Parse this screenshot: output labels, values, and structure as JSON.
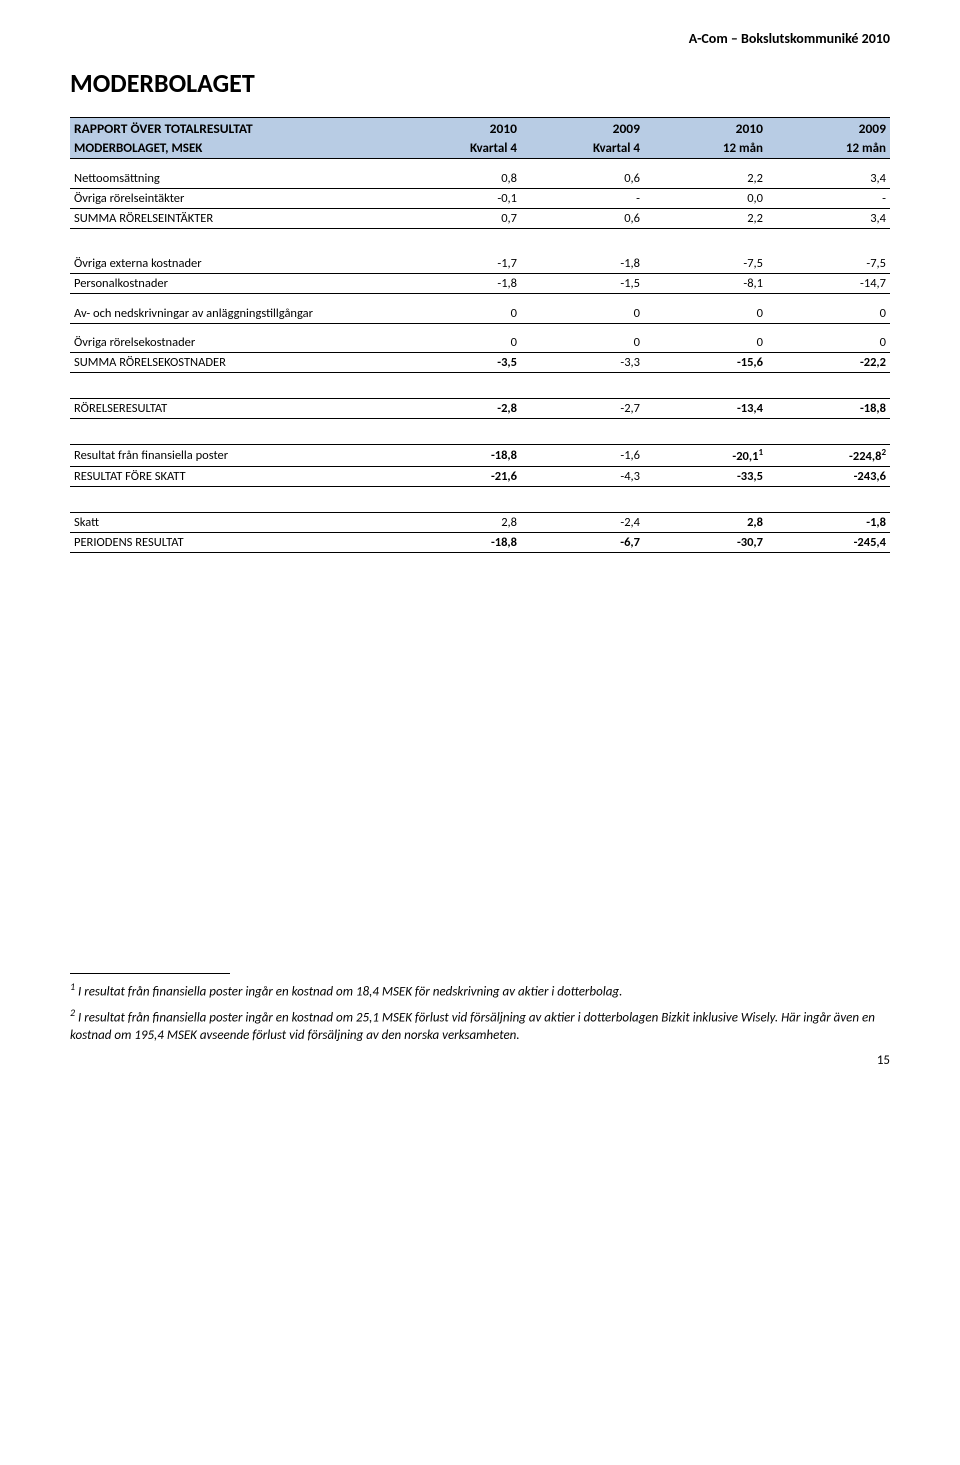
{
  "header": {
    "doc_title": "A-Com – Bokslutskommuniké 2010"
  },
  "section_title": "MODERBOLAGET",
  "table": {
    "head1": {
      "label": "RAPPORT ÖVER TOTALRESULTAT",
      "c1": "2010",
      "c2": "2009",
      "c3": "2010",
      "c4": "2009"
    },
    "head2": {
      "label": "MODERBOLAGET, MSEK",
      "c1": "Kvartal 4",
      "c2": "Kvartal 4",
      "c3": "12 mån",
      "c4": "12 mån"
    },
    "rows": {
      "nettoomsattning": {
        "label": "Nettoomsättning",
        "c1": "0,8",
        "c2": "0,6",
        "c3": "2,2",
        "c4": "3,4"
      },
      "ovriga_rorelseintakter": {
        "label": "Övriga rörelseintäkter",
        "c1": "-0,1",
        "c2": "-",
        "c3": "0,0",
        "c4": "-"
      },
      "summa_rorelseintakter": {
        "label": "SUMMA RÖRELSEINTÄKTER",
        "c1": "0,7",
        "c2": "0,6",
        "c3": "2,2",
        "c4": "3,4"
      },
      "ovriga_externa": {
        "label": "Övriga externa kostnader",
        "c1": "-1,7",
        "c2": "-1,8",
        "c3": "-7,5",
        "c4": "-7,5"
      },
      "personalkostnader": {
        "label": "Personalkostnader",
        "c1": "-1,8",
        "c2": "-1,5",
        "c3": "-8,1",
        "c4": "-14,7"
      },
      "av_nedskrivningar": {
        "label": "Av- och nedskrivningar av anläggningstillgångar",
        "c1": "0",
        "c2": "0",
        "c3": "0",
        "c4": "0"
      },
      "ovriga_rorelsekostnader": {
        "label": "Övriga rörelsekostnader",
        "c1": "0",
        "c2": "0",
        "c3": "0",
        "c4": "0"
      },
      "summa_rorelsekostnader": {
        "label": "SUMMA RÖRELSEKOSTNADER",
        "c1": "-3,5",
        "c2": "-3,3",
        "c3": "-15,6",
        "c4": "-22,2"
      },
      "rorelseresultat": {
        "label": "RÖRELSERESULTAT",
        "c1": "-2,8",
        "c2": "-2,7",
        "c3": "-13,4",
        "c4": "-18,8"
      },
      "resultat_fin": {
        "label": "Resultat från finansiella poster",
        "c1": "-18,8",
        "c2": "-1,6",
        "c3": "-20,1",
        "c3sup": "1",
        "c4": "-224,8",
        "c4sup": "2"
      },
      "resultat_fore_skatt": {
        "label": "RESULTAT FÖRE SKATT",
        "c1": "-21,6",
        "c2": "-4,3",
        "c3": "-33,5",
        "c4": "-243,6"
      },
      "skatt": {
        "label": "Skatt",
        "c1": "2,8",
        "c2": "-2,4",
        "c3": "2,8",
        "c4": "-1,8"
      },
      "periodens_resultat": {
        "label": "PERIODENS RESULTAT",
        "c1": "-18,8",
        "c2": "-6,7",
        "c3": "-30,7",
        "c4": "-245,4"
      }
    }
  },
  "footnotes": {
    "fn1": "I resultat från finansiella poster ingår en kostnad om 18,4 MSEK för nedskrivning av aktier i dotterbolag.",
    "fn2a": "I resultat från finansiella poster ingår en kostnad om 25,1 MSEK förlust vid försäljning av aktier i dotterbolagen Bizkit inklusive Wisely. Här ingår även en kostnad om 195,4 MSEK avseende förlust vid försäljning av den norska verksamheten."
  },
  "page_number": "15"
}
